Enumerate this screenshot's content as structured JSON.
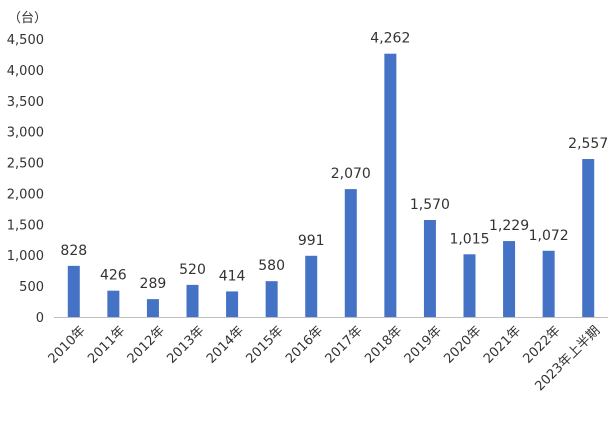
{
  "chart_data": {
    "type": "bar",
    "title": "",
    "xlabel": "",
    "ylabel": "",
    "unit": "（台）",
    "ylim": [
      0,
      4500
    ],
    "yticks": [
      0,
      500,
      1000,
      1500,
      2000,
      2500,
      3000,
      3500,
      4000,
      4500
    ],
    "ytick_labels": [
      "0",
      "500",
      "1,000",
      "1,500",
      "2,000",
      "2,500",
      "3,000",
      "3,500",
      "4,000",
      "4,500"
    ],
    "categories": [
      "2010年",
      "2011年",
      "2012年",
      "2013年",
      "2014年",
      "2015年",
      "2016年",
      "2017年",
      "2018年",
      "2019年",
      "2020年",
      "2021年",
      "2022年",
      "2023年上半期"
    ],
    "values": [
      828,
      426,
      289,
      520,
      414,
      580,
      991,
      2070,
      4262,
      1570,
      1015,
      1229,
      1072,
      2557
    ],
    "value_labels": [
      "828",
      "426",
      "289",
      "520",
      "414",
      "580",
      "991",
      "2,070",
      "4,262",
      "1,570",
      "1,015",
      "1,229",
      "1,072",
      "2,557"
    ],
    "bar_color": "#4472c4",
    "grid": false,
    "legend": "none"
  }
}
